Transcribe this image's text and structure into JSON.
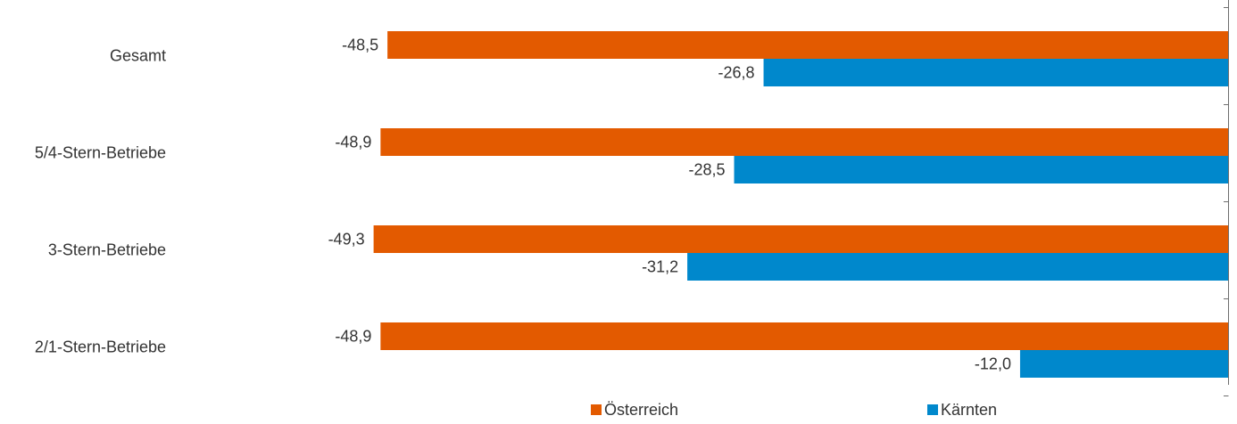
{
  "chart_data": {
    "type": "bar",
    "orientation": "horizontal",
    "title": "",
    "categories": [
      "Gesamt",
      "5/4-Stern-Betriebe",
      "3-Stern-Betriebe",
      "2/1-Stern-Betriebe"
    ],
    "series": [
      {
        "name": "Österreich",
        "color": "#E35A00",
        "values": [
          -48.5,
          -48.9,
          -49.3,
          -48.9
        ],
        "labels": [
          "-48,5",
          "-48,9",
          "-49,3",
          "-48,9"
        ]
      },
      {
        "name": "Kärnten",
        "color": "#0088CC",
        "values": [
          -26.8,
          -28.5,
          -31.2,
          -12.0
        ],
        "labels": [
          "-26,8",
          "-28,5",
          "-31,2",
          "-12,0"
        ]
      }
    ],
    "xlim": [
      -51,
      0
    ],
    "axis_position": "right",
    "grid": false,
    "legend_position": "bottom"
  }
}
